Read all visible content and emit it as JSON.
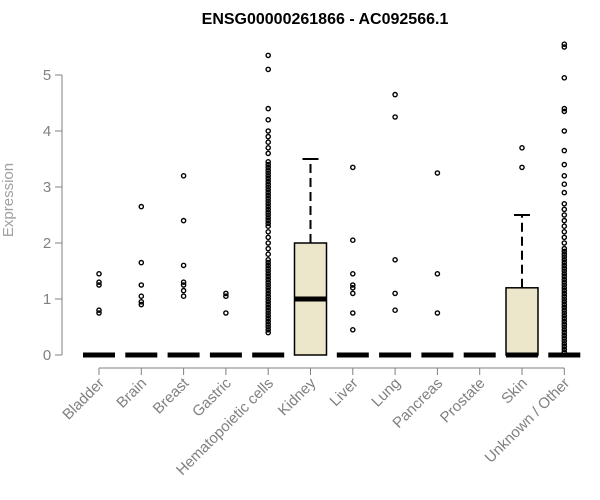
{
  "chart_data": {
    "type": "boxplot",
    "title": "ENSG00000261866 - AC092566.1",
    "xlabel": "",
    "ylabel": "Expression",
    "ylim": [
      0,
      5.6
    ],
    "yticks": [
      "0",
      "1",
      "2",
      "3",
      "4",
      "5"
    ],
    "grid": false,
    "box_color": "#ece6ca",
    "categories": [
      "Bladder",
      "Brain",
      "Breast",
      "Gastric",
      "Hematopoietic cells",
      "Kidney",
      "Liver",
      "Lung",
      "Pancreas",
      "Prostate",
      "Skin",
      "Unknown / Other"
    ],
    "series": [
      {
        "q1": 0,
        "median": 0,
        "q3": 0,
        "whisker_low": 0,
        "whisker_high": 0,
        "outliers": [
          0.75,
          0.8,
          1.25,
          1.3,
          1.45
        ]
      },
      {
        "q1": 0,
        "median": 0,
        "q3": 0,
        "whisker_low": 0,
        "whisker_high": 0,
        "outliers": [
          0.9,
          0.95,
          1.05,
          1.25,
          1.65,
          2.65
        ]
      },
      {
        "q1": 0,
        "median": 0,
        "q3": 0,
        "whisker_low": 0,
        "whisker_high": 0,
        "outliers": [
          1.05,
          1.15,
          1.25,
          1.3,
          1.6,
          2.4,
          3.2
        ]
      },
      {
        "q1": 0,
        "median": 0,
        "q3": 0,
        "whisker_low": 0,
        "whisker_high": 0,
        "outliers": [
          0.75,
          1.05,
          1.1
        ]
      },
      {
        "q1": 0,
        "median": 0,
        "q3": 0,
        "whisker_low": 0,
        "whisker_high": 0,
        "outliers": [
          0.4,
          0.45,
          0.5,
          0.55,
          0.6,
          0.65,
          0.7,
          0.75,
          0.8,
          0.85,
          0.9,
          0.95,
          1.0,
          1.05,
          1.1,
          1.15,
          1.2,
          1.25,
          1.3,
          1.35,
          1.4,
          1.45,
          1.5,
          1.55,
          1.6,
          1.65,
          1.7,
          1.8,
          1.9,
          2.0,
          2.1,
          2.2,
          2.3,
          2.35,
          2.4,
          2.45,
          2.5,
          2.55,
          2.6,
          2.65,
          2.7,
          2.75,
          2.8,
          2.85,
          2.9,
          2.95,
          3.0,
          3.05,
          3.1,
          3.15,
          3.2,
          3.25,
          3.3,
          3.35,
          3.4,
          3.45,
          3.6,
          3.7,
          3.8,
          3.9,
          4.0,
          4.2,
          4.4,
          5.1,
          5.35
        ]
      },
      {
        "q1": 0,
        "median": 1.0,
        "q3": 2.0,
        "whisker_low": 0,
        "whisker_high": 3.5,
        "outliers": []
      },
      {
        "q1": 0,
        "median": 0,
        "q3": 0,
        "whisker_low": 0,
        "whisker_high": 0,
        "outliers": [
          0.45,
          0.75,
          1.1,
          1.2,
          1.25,
          1.45,
          2.05,
          3.35
        ]
      },
      {
        "q1": 0,
        "median": 0,
        "q3": 0,
        "whisker_low": 0,
        "whisker_high": 0,
        "outliers": [
          0.8,
          1.1,
          1.7,
          4.25,
          4.65
        ]
      },
      {
        "q1": 0,
        "median": 0,
        "q3": 0,
        "whisker_low": 0,
        "whisker_high": 0,
        "outliers": [
          0.75,
          1.45,
          3.25
        ]
      },
      {
        "q1": 0,
        "median": 0,
        "q3": 0,
        "whisker_low": 0,
        "whisker_high": 0,
        "outliers": []
      },
      {
        "q1": 0,
        "median": 0,
        "q3": 1.2,
        "whisker_low": 0,
        "whisker_high": 2.5,
        "outliers": [
          3.35,
          3.7
        ]
      },
      {
        "q1": 0,
        "median": 0,
        "q3": 0,
        "whisker_low": 0,
        "whisker_high": 0,
        "outliers": [
          0.05,
          0.1,
          0.15,
          0.2,
          0.25,
          0.3,
          0.35,
          0.4,
          0.45,
          0.5,
          0.55,
          0.6,
          0.65,
          0.7,
          0.75,
          0.8,
          0.85,
          0.9,
          0.95,
          1.0,
          1.05,
          1.1,
          1.15,
          1.2,
          1.25,
          1.3,
          1.35,
          1.4,
          1.45,
          1.5,
          1.55,
          1.6,
          1.65,
          1.7,
          1.75,
          1.8,
          1.85,
          1.9,
          2.0,
          2.1,
          2.2,
          2.3,
          2.4,
          2.5,
          2.6,
          2.7,
          2.9,
          3.05,
          3.2,
          3.4,
          3.65,
          4.0,
          4.35,
          4.4,
          4.95,
          5.5,
          5.55
        ]
      }
    ]
  }
}
